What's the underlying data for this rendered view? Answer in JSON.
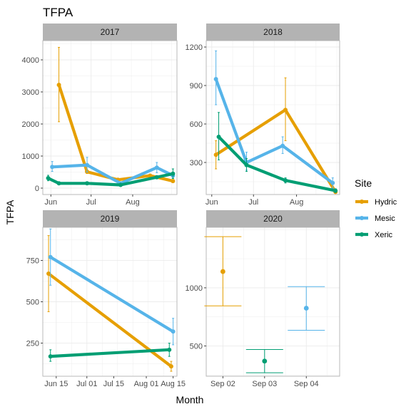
{
  "title": "TFPA",
  "xlabel": "Month",
  "ylabel": "TFPA",
  "legend": {
    "title": "Site",
    "placement": "right",
    "items": [
      {
        "name": "Hydric",
        "color": "#E69F00"
      },
      {
        "name": "Mesic",
        "color": "#56B4E9"
      },
      {
        "name": "Xeric",
        "color": "#009E73"
      }
    ]
  },
  "chart_data": [
    {
      "type": "line",
      "panel": "2017",
      "grid": true,
      "xticks": [
        "Jun",
        "Jul",
        "Aug"
      ],
      "xtick_dates": [
        "2017-06-01",
        "2017-07-01",
        "2017-08-01"
      ],
      "xlim": [
        "2017-05-26",
        "2017-09-03"
      ],
      "yticks": [
        0,
        1000,
        2000,
        3000,
        4000
      ],
      "ylim": [
        -200,
        4600
      ],
      "series": [
        {
          "name": "Hydric",
          "points": [
            {
              "x": "2017-06-07",
              "y": 3220,
              "lo": 2070,
              "hi": 4390
            },
            {
              "x": "2017-06-28",
              "y": 510,
              "lo": 460,
              "hi": 560
            },
            {
              "x": "2017-07-21",
              "y": 260,
              "lo": 230,
              "hi": 290
            },
            {
              "x": "2017-08-14",
              "y": 390,
              "lo": 350,
              "hi": 430
            },
            {
              "x": "2017-08-31",
              "y": 220,
              "lo": 190,
              "hi": 250
            }
          ]
        },
        {
          "name": "Mesic",
          "points": [
            {
              "x": "2017-06-02",
              "y": 660,
              "lo": 520,
              "hi": 830
            },
            {
              "x": "2017-06-28",
              "y": 720,
              "lo": 500,
              "hi": 960
            },
            {
              "x": "2017-07-23",
              "y": 150,
              "lo": 120,
              "hi": 190
            },
            {
              "x": "2017-08-19",
              "y": 640,
              "lo": 480,
              "hi": 800
            },
            {
              "x": "2017-08-31",
              "y": 390,
              "lo": 300,
              "hi": 480
            }
          ]
        },
        {
          "name": "Xeric",
          "points": [
            {
              "x": "2017-05-30",
              "y": 310,
              "lo": 230,
              "hi": 400
            },
            {
              "x": "2017-06-07",
              "y": 150,
              "lo": 120,
              "hi": 180
            },
            {
              "x": "2017-06-28",
              "y": 150,
              "lo": 120,
              "hi": 180
            },
            {
              "x": "2017-07-23",
              "y": 100,
              "lo": 80,
              "hi": 120
            },
            {
              "x": "2017-08-19",
              "y": 340,
              "lo": 290,
              "hi": 390
            },
            {
              "x": "2017-08-31",
              "y": 450,
              "lo": 300,
              "hi": 600
            }
          ]
        }
      ]
    },
    {
      "type": "line",
      "panel": "2018",
      "grid": true,
      "xticks": [
        "Jun",
        "Jul",
        "Aug"
      ],
      "xtick_dates": [
        "2018-06-01",
        "2018-07-01",
        "2018-08-01"
      ],
      "xlim": [
        "2018-05-28",
        "2018-09-01"
      ],
      "yticks": [
        300,
        600,
        900,
        1200
      ],
      "ylim": [
        50,
        1250
      ],
      "series": [
        {
          "name": "Hydric",
          "points": [
            {
              "x": "2018-06-04",
              "y": 360,
              "lo": 250,
              "hi": 470
            },
            {
              "x": "2018-07-24",
              "y": 710,
              "lo": 470,
              "hi": 960
            },
            {
              "x": "2018-08-29",
              "y": 70,
              "lo": 60,
              "hi": 80
            }
          ]
        },
        {
          "name": "Mesic",
          "points": [
            {
              "x": "2018-06-04",
              "y": 950,
              "lo": 750,
              "hi": 1170
            },
            {
              "x": "2018-06-26",
              "y": 300,
              "lo": 240,
              "hi": 380
            },
            {
              "x": "2018-07-22",
              "y": 430,
              "lo": 370,
              "hi": 500
            },
            {
              "x": "2018-08-27",
              "y": 140,
              "lo": 100,
              "hi": 180
            }
          ]
        },
        {
          "name": "Xeric",
          "points": [
            {
              "x": "2018-06-06",
              "y": 500,
              "lo": 320,
              "hi": 690
            },
            {
              "x": "2018-06-26",
              "y": 280,
              "lo": 230,
              "hi": 330
            },
            {
              "x": "2018-07-24",
              "y": 160,
              "lo": 140,
              "hi": 180
            },
            {
              "x": "2018-08-29",
              "y": 80,
              "lo": 65,
              "hi": 95
            }
          ]
        }
      ]
    },
    {
      "type": "line",
      "panel": "2019",
      "grid": true,
      "xticks": [
        "Jun 15",
        "Jul 01",
        "Jul 15",
        "Aug 01",
        "Aug 15"
      ],
      "xtick_dates": [
        "2019-06-15",
        "2019-07-01",
        "2019-07-15",
        "2019-08-01",
        "2019-08-15"
      ],
      "xlim": [
        "2019-06-08",
        "2019-08-17"
      ],
      "yticks": [
        250,
        500,
        750
      ],
      "ylim": [
        50,
        950
      ],
      "series": [
        {
          "name": "Hydric",
          "points": [
            {
              "x": "2019-06-11",
              "y": 670,
              "lo": 440,
              "hi": 900
            },
            {
              "x": "2019-08-14",
              "y": 110,
              "lo": 80,
              "hi": 140
            }
          ]
        },
        {
          "name": "Mesic",
          "points": [
            {
              "x": "2019-06-12",
              "y": 770,
              "lo": 600,
              "hi": 940
            },
            {
              "x": "2019-08-15",
              "y": 320,
              "lo": 240,
              "hi": 400
            }
          ]
        },
        {
          "name": "Xeric",
          "points": [
            {
              "x": "2019-06-12",
              "y": 170,
              "lo": 140,
              "hi": 210
            },
            {
              "x": "2019-08-13",
              "y": 210,
              "lo": 170,
              "hi": 250
            }
          ]
        }
      ]
    },
    {
      "type": "scatter",
      "panel": "2020",
      "grid": true,
      "xticks": [
        "Sep 02",
        "Sep 03",
        "Sep 04"
      ],
      "xtick_dates": [
        "2020-09-02",
        "2020-09-03",
        "2020-09-04"
      ],
      "xlim": [
        "2020-09-01T14:24",
        "2020-09-04T19:12"
      ],
      "yticks": [
        500,
        1000
      ],
      "ylim": [
        240,
        1520
      ],
      "series": [
        {
          "name": "Hydric",
          "points": [
            {
              "x": "2020-09-02",
              "y": 1140,
              "lo": 845,
              "hi": 1440
            }
          ]
        },
        {
          "name": "Mesic",
          "points": [
            {
              "x": "2020-09-04",
              "y": 825,
              "lo": 635,
              "hi": 1010
            }
          ]
        },
        {
          "name": "Xeric",
          "points": [
            {
              "x": "2020-09-03",
              "y": 370,
              "lo": 270,
              "hi": 470
            }
          ]
        }
      ]
    }
  ]
}
